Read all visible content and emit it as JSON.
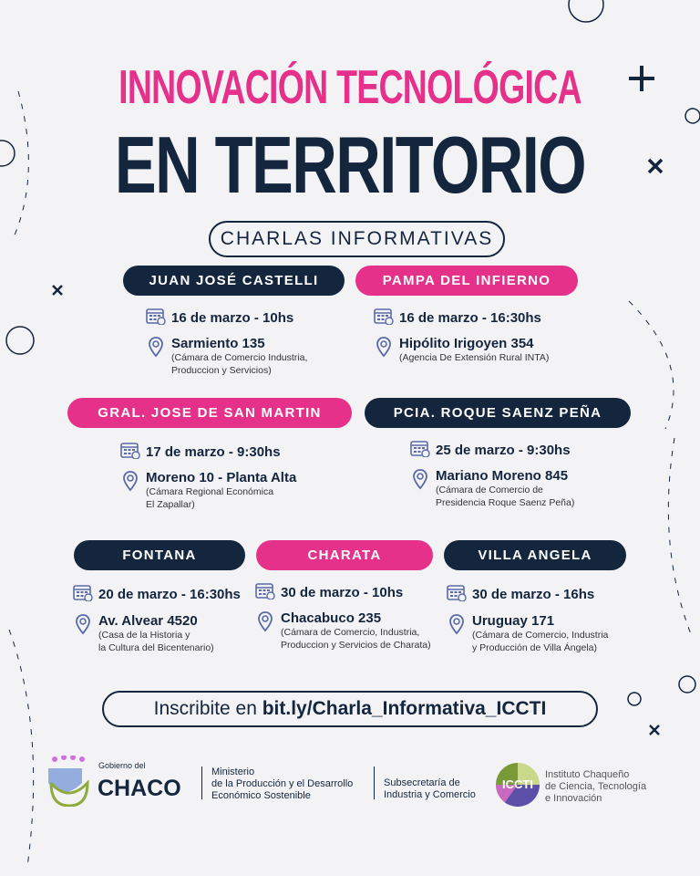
{
  "header": {
    "title_line1": "INNOVACIÓN TECNOLÓGICA",
    "title_line2": "EN TERRITORIO",
    "subtitle": "CHARLAS INFORMATIVAS"
  },
  "colors": {
    "navy": "#14253e",
    "pink": "#e5318a",
    "background": "#f3f3f5"
  },
  "events": [
    {
      "city": "JUAN JOSÉ CASTELLI",
      "color": "navy",
      "date": "16 de marzo - 10hs",
      "address": "Sarmiento 135",
      "venue": "(Cámara de Comercio Industria,\nProduccion y Servicios)"
    },
    {
      "city": "PAMPA DEL INFIERNO",
      "color": "pink",
      "date": "16 de marzo - 16:30hs",
      "address": "Hipólito Irigoyen 354",
      "venue": "(Agencia De Extensión Rural INTA)"
    },
    {
      "city": "GRAL. JOSE DE SAN MARTIN",
      "color": "pink",
      "date": "17 de marzo - 9:30hs",
      "address": "Moreno 10 - Planta Alta",
      "venue": "(Cámara Regional Económica\nEl Zapallar)"
    },
    {
      "city": "PCIA. ROQUE SAENZ PEÑA",
      "color": "navy",
      "date": "25 de marzo - 9:30hs",
      "address": "Mariano Moreno 845",
      "venue": "(Cámara de Comercio de\nPresidencia Roque Saenz Peña)"
    },
    {
      "city": "FONTANA",
      "color": "navy",
      "date": "20 de marzo - 16:30hs",
      "address": "Av. Alvear 4520",
      "venue": "(Casa de la Historia y\nla Cultura del Bicentenario)"
    },
    {
      "city": "CHARATA",
      "color": "pink",
      "date": "30 de marzo - 10hs",
      "address": "Chacabuco 235",
      "venue": "(Cámara de Comercio, Industria,\nProduccion y Servicios de Charata)"
    },
    {
      "city": "VILLA ANGELA",
      "color": "navy",
      "date": "30 de marzo - 16hs",
      "address": "Uruguay 171",
      "venue": "(Cámara de Comercio, Industria\ny Producción de Villa Ángela)"
    }
  ],
  "cta": {
    "prefix": "Inscribite en ",
    "link": "bit.ly/Charla_Informativa_ICCTI"
  },
  "footer": {
    "chaco_small": "Gobierno del",
    "chaco_big": "CHACO",
    "ministry": "Ministerio\nde la Producción y el Desarrollo\nEconómico Sostenible",
    "subsecretaria": "Subsecretaría de\nIndustria y Comercio",
    "icct_logo": "ICCTI",
    "icct_name": "Instituto Chaqueño\nde Ciencia, Tecnología\ne Innovación"
  }
}
